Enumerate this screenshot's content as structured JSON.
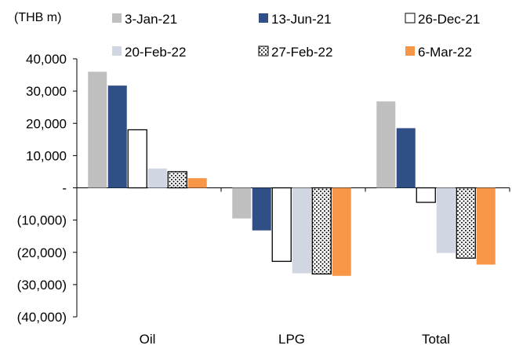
{
  "chart_data": {
    "type": "bar",
    "unit_label": "(THB m)",
    "categories": [
      "Oil",
      "LPG",
      "Total"
    ],
    "series": [
      {
        "name": "3-Jan-21",
        "color": "#BFBFBF",
        "pattern": "solid",
        "values": [
          36000,
          -9500,
          26800
        ]
      },
      {
        "name": "13-Jun-21",
        "color": "#2F4F86",
        "pattern": "solid",
        "values": [
          31700,
          -13200,
          18500
        ]
      },
      {
        "name": "26-Dec-21",
        "color": "#FFFFFF",
        "pattern": "outline",
        "values": [
          18000,
          -22800,
          -4500
        ]
      },
      {
        "name": "20-Feb-22",
        "color": "#D0D7E3",
        "pattern": "solid",
        "values": [
          6000,
          -26500,
          -20200
        ]
      },
      {
        "name": "27-Feb-22",
        "color": "#FFFFFF",
        "pattern": "dots",
        "values": [
          5000,
          -26700,
          -21800
        ]
      },
      {
        "name": "6-Mar-22",
        "color": "#F79646",
        "pattern": "solid",
        "values": [
          3000,
          -27300,
          -23800
        ]
      }
    ],
    "ylim": [
      -40000,
      40000
    ],
    "yticks": [
      40000,
      30000,
      20000,
      10000,
      0,
      -10000,
      -20000,
      -30000,
      -40000
    ],
    "ytick_labels": [
      "40,000",
      "30,000",
      "20,000",
      "10,000",
      "-",
      "(10,000)",
      "(20,000)",
      "(30,000)",
      "(40,000)"
    ],
    "grid": false,
    "legend_position": "top"
  }
}
